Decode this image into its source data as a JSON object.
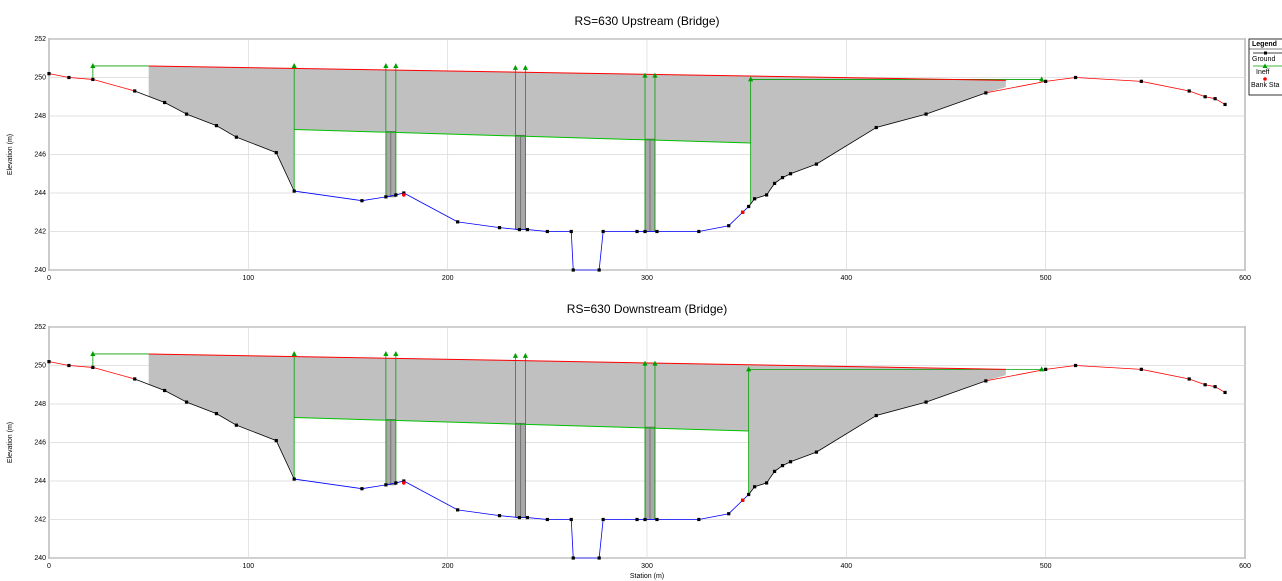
{
  "chart_data": [
    {
      "type": "cross_section",
      "title": "RS=630    Upstream (Bridge)",
      "y_label": "Elevation (m)",
      "xlim": [
        0,
        600
      ],
      "xticks": [
        0,
        100,
        200,
        300,
        400,
        500,
        600
      ],
      "ylim": [
        240,
        252
      ],
      "yticks": [
        240,
        242,
        244,
        246,
        248,
        250,
        252
      ],
      "grid": true,
      "legend": {
        "title": "Legend",
        "entries": [
          "Ground",
          "Ineff",
          "Bank Sta"
        ]
      },
      "ground": {
        "color": "#000000",
        "x": [
          0,
          10,
          22,
          43,
          58,
          69,
          84,
          94,
          114,
          123,
          157,
          169,
          174,
          178,
          205,
          226,
          236,
          240,
          250,
          262,
          263,
          276,
          278,
          295,
          299,
          305,
          326,
          341,
          348,
          351,
          354,
          360,
          364,
          368,
          372,
          385,
          415,
          440,
          470,
          500,
          515,
          548,
          572,
          580,
          585,
          590
        ],
        "y": [
          250.2,
          250.0,
          249.9,
          249.3,
          248.7,
          248.1,
          247.5,
          246.9,
          246.1,
          244.1,
          243.6,
          243.8,
          243.9,
          244.0,
          242.5,
          242.2,
          242.1,
          242.1,
          242.0,
          242.0,
          240.0,
          240.0,
          242.0,
          242.0,
          242.0,
          242.0,
          242.0,
          242.3,
          243.0,
          243.3,
          243.7,
          243.9,
          244.5,
          244.8,
          245.0,
          245.5,
          247.4,
          248.1,
          249.2,
          249.8,
          250.0,
          249.8,
          249.3,
          249.0,
          248.9,
          248.6
        ]
      },
      "deck": {
        "color": "#c0c0c0",
        "x": [
          50,
          480,
          480,
          470,
          440,
          415,
          385,
          372,
          368,
          364,
          360,
          354,
          352,
          352,
          123,
          123,
          114,
          94,
          84,
          69,
          58,
          50
        ],
        "y": [
          250.6,
          249.85,
          249.5,
          249.2,
          248.1,
          247.4,
          245.5,
          245.0,
          244.8,
          244.5,
          243.9,
          243.7,
          243.4,
          246.6,
          247.3,
          244.2,
          246.1,
          246.9,
          247.5,
          248.1,
          248.7,
          249.0
        ]
      },
      "high_chord": {
        "color": "#ff0000",
        "x": [
          50,
          480
        ],
        "y": [
          250.6,
          249.85
        ]
      },
      "low_chord": {
        "color": "#00c000",
        "x": [
          123,
          352
        ],
        "y": [
          247.3,
          246.6
        ]
      },
      "piers": [
        {
          "x": [
            169,
            174
          ],
          "y": [
            243.8,
            247.2
          ]
        },
        {
          "x": [
            234,
            239
          ],
          "y": [
            242.1,
            247.0
          ]
        },
        {
          "x": [
            299,
            304
          ],
          "y": [
            242.0,
            246.8
          ]
        }
      ],
      "ineff": {
        "color": "#00a000",
        "x": [
          22,
          123,
          169,
          174,
          234,
          239,
          299,
          304,
          352,
          498
        ],
        "y": [
          250.6,
          250.6,
          250.6,
          250.6,
          250.5,
          250.5,
          250.1,
          250.1,
          249.9,
          249.9
        ]
      },
      "bank_stations": {
        "color": "#ff0000",
        "x": [
          178,
          348
        ],
        "y": [
          243.9,
          243.0
        ]
      }
    },
    {
      "type": "cross_section",
      "title": "RS=630    Downstream (Bridge)",
      "y_label": "Elevation (m)",
      "x_label": "Station (m)",
      "xlim": [
        0,
        600
      ],
      "xticks": [
        0,
        100,
        200,
        300,
        400,
        500,
        600
      ],
      "ylim": [
        240,
        252
      ],
      "yticks": [
        240,
        242,
        244,
        246,
        248,
        250,
        252
      ],
      "grid": true,
      "ground": {
        "color": "#000000",
        "x": [
          0,
          10,
          22,
          43,
          58,
          69,
          84,
          94,
          114,
          123,
          157,
          169,
          174,
          178,
          205,
          226,
          236,
          240,
          250,
          262,
          263,
          276,
          278,
          295,
          299,
          305,
          326,
          341,
          348,
          351,
          354,
          360,
          364,
          368,
          372,
          385,
          415,
          440,
          470,
          500,
          515,
          548,
          572,
          580,
          585,
          590
        ],
        "y": [
          250.2,
          250.0,
          249.9,
          249.3,
          248.7,
          248.1,
          247.5,
          246.9,
          246.1,
          244.1,
          243.6,
          243.8,
          243.9,
          244.0,
          242.5,
          242.2,
          242.1,
          242.1,
          242.0,
          242.0,
          240.0,
          240.0,
          242.0,
          242.0,
          242.0,
          242.0,
          242.0,
          242.3,
          243.0,
          243.3,
          243.7,
          243.9,
          244.5,
          244.8,
          245.0,
          245.5,
          247.4,
          248.1,
          249.2,
          249.8,
          250.0,
          249.8,
          249.3,
          249.0,
          248.9,
          248.6
        ]
      },
      "deck": {
        "color": "#c0c0c0",
        "x": [
          50,
          480,
          480,
          470,
          440,
          415,
          385,
          372,
          368,
          364,
          360,
          354,
          351,
          351,
          123,
          123,
          114,
          94,
          84,
          69,
          58,
          50
        ],
        "y": [
          250.6,
          249.8,
          249.5,
          249.2,
          248.1,
          247.4,
          245.5,
          245.0,
          244.8,
          244.5,
          243.9,
          243.7,
          243.3,
          246.6,
          247.3,
          244.2,
          246.1,
          246.9,
          247.5,
          248.1,
          248.7,
          249.0
        ]
      },
      "high_chord": {
        "color": "#ff0000",
        "x": [
          50,
          480
        ],
        "y": [
          250.6,
          249.8
        ]
      },
      "low_chord": {
        "color": "#00c000",
        "x": [
          123,
          351
        ],
        "y": [
          247.3,
          246.6
        ]
      },
      "piers": [
        {
          "x": [
            169,
            174
          ],
          "y": [
            243.8,
            247.2
          ]
        },
        {
          "x": [
            234,
            239
          ],
          "y": [
            242.1,
            247.0
          ]
        },
        {
          "x": [
            299,
            304
          ],
          "y": [
            242.0,
            246.8
          ]
        }
      ],
      "ineff": {
        "color": "#00a000",
        "x": [
          22,
          123,
          169,
          174,
          234,
          239,
          299,
          304,
          351,
          498
        ],
        "y": [
          250.6,
          250.6,
          250.6,
          250.6,
          250.5,
          250.5,
          250.1,
          250.1,
          249.8,
          249.8
        ]
      },
      "bank_stations": {
        "color": "#ff0000",
        "x": [
          178,
          348
        ],
        "y": [
          243.9,
          243.0
        ]
      }
    }
  ]
}
